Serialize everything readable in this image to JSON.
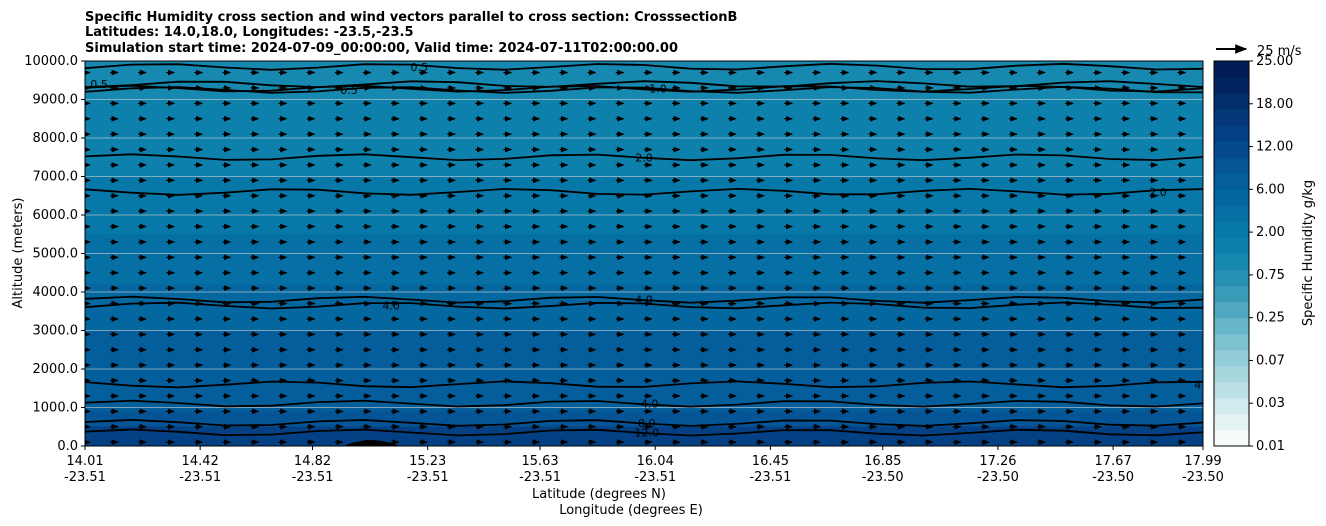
{
  "chart_data": {
    "type": "contour",
    "title_lines": [
      "Specific Humidity cross section and wind vectors parallel to cross section: CrosssectionB",
      "Latitudes: 14.0,18.0, Longitudes: -23.5,-23.5",
      "Simulation start time: 2024-07-09_00:00:00, Valid time: 2024-07-11T02:00:00.00"
    ],
    "xlabel_lines": [
      "Latitude (degrees N)",
      "Longitude (degrees E)"
    ],
    "ylabel": "Altitude (meters)",
    "ylim": [
      0,
      10000
    ],
    "yticks": [
      {
        "value": 0,
        "label": "0.0"
      },
      {
        "value": 1000,
        "label": "1000.0"
      },
      {
        "value": 2000,
        "label": "2000.0"
      },
      {
        "value": 3000,
        "label": "3000.0"
      },
      {
        "value": 4000,
        "label": "4000.0"
      },
      {
        "value": 5000,
        "label": "5000.0"
      },
      {
        "value": 6000,
        "label": "6000.0"
      },
      {
        "value": 7000,
        "label": "7000.0"
      },
      {
        "value": 8000,
        "label": "8000.0"
      },
      {
        "value": 9000,
        "label": "9000.0"
      },
      {
        "value": 10000,
        "label": "10000.0"
      }
    ],
    "xlim": [
      14.01,
      17.99
    ],
    "xticks": [
      {
        "lat": 14.01,
        "lat_label": "14.01",
        "lon_label": "-23.51"
      },
      {
        "lat": 14.42,
        "lat_label": "14.42",
        "lon_label": "-23.51"
      },
      {
        "lat": 14.82,
        "lat_label": "14.82",
        "lon_label": "-23.51"
      },
      {
        "lat": 15.23,
        "lat_label": "15.23",
        "lon_label": "-23.51"
      },
      {
        "lat": 15.63,
        "lat_label": "15.63",
        "lon_label": "-23.51"
      },
      {
        "lat": 16.04,
        "lat_label": "16.04",
        "lon_label": "-23.51"
      },
      {
        "lat": 16.45,
        "lat_label": "16.45",
        "lon_label": "-23.51"
      },
      {
        "lat": 16.85,
        "lat_label": "16.85",
        "lon_label": "-23.50"
      },
      {
        "lat": 17.26,
        "lat_label": "17.26",
        "lon_label": "-23.50"
      },
      {
        "lat": 17.67,
        "lat_label": "17.67",
        "lon_label": "-23.50"
      },
      {
        "lat": 17.99,
        "lat_label": "17.99",
        "lon_label": "-23.50"
      }
    ],
    "colorbar": {
      "label": "Specific Humidity g/kg",
      "tick_labels": [
        "0.01",
        "0.03",
        "0.07",
        "0.25",
        "0.75",
        "2.00",
        "6.00",
        "12.00",
        "18.00",
        "25.00"
      ],
      "colors": [
        "#f7fbfc",
        "#e6f3f5",
        "#d1eaee",
        "#bbe0e7",
        "#a7d6df",
        "#92ccd8",
        "#7dc1d0",
        "#67b5c8",
        "#50a8c0",
        "#3a9cb9",
        "#2791b4",
        "#1788b0",
        "#0d80ac",
        "#0878a8",
        "#0670a4",
        "#0567a0",
        "#055e9c",
        "#055496",
        "#054a8e",
        "#044184",
        "#043878",
        "#032e6c",
        "#02255f",
        "#021d55"
      ]
    },
    "reference_vector": {
      "label": "25 m/s",
      "speed": 25
    },
    "wind_grid": {
      "x_start": 14.01,
      "x_end": 17.99,
      "x_step": 0.1,
      "y_start": 100,
      "y_end": 9900,
      "y_step": 400,
      "direction": "parallel, positive"
    },
    "surface_terrain": {
      "peak_lat": 15.03,
      "peak_height": 200,
      "half_width_lat": 0.1
    },
    "contours": [
      {
        "level": "0.5",
        "label_positions": [
          [
            14.06,
            9400
          ],
          [
            14.95,
            9250
          ],
          [
            15.2,
            9850
          ]
        ]
      },
      {
        "level": "1.0",
        "label_positions": [
          [
            16.05,
            9280
          ]
        ]
      },
      {
        "level": "2.0",
        "label_positions": [
          [
            16.0,
            7500
          ],
          [
            17.83,
            6600
          ]
        ]
      },
      {
        "level": "4.0",
        "label_positions": [
          [
            15.1,
            3650
          ],
          [
            16.0,
            3800
          ],
          [
            16.02,
            1100
          ],
          [
            17.99,
            1600
          ]
        ]
      },
      {
        "level": "8.0",
        "label_positions": [
          [
            16.01,
            600
          ]
        ]
      },
      {
        "level": "12.0",
        "label_positions": [
          [
            16.01,
            350
          ]
        ]
      }
    ],
    "humidity_field": [
      {
        "top_altitude": 10000,
        "value": 1.0
      },
      {
        "top_altitude": 9000,
        "value": 1.5
      },
      {
        "top_altitude": 7000,
        "value": 2.5
      },
      {
        "top_altitude": 5500,
        "value": 3.2
      },
      {
        "top_altitude": 4200,
        "value": 5.0
      },
      {
        "top_altitude": 3000,
        "value": 6.5
      },
      {
        "top_altitude": 1300,
        "value": 7.0
      },
      {
        "top_altitude": 900,
        "value": 10.0
      },
      {
        "top_altitude": 500,
        "value": 14.0
      }
    ],
    "grid": "horizontal",
    "legend": "colorbar right"
  }
}
